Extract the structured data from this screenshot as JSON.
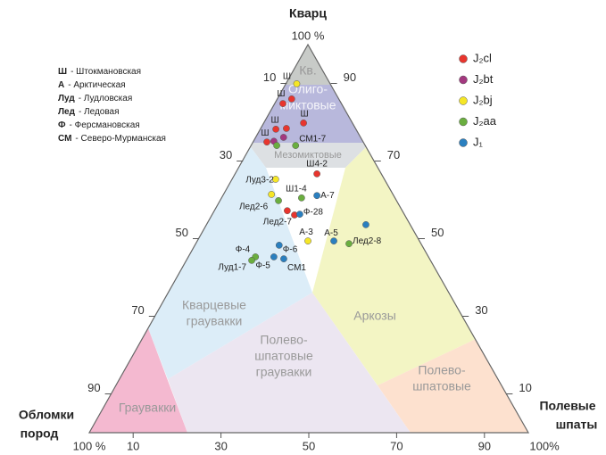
{
  "chart_data": {
    "type": "ternary",
    "title": "Кварц",
    "top_corner_label": "100 %",
    "left_corner_title": [
      "Обломки",
      "пород"
    ],
    "left_corner_label": "100 %",
    "right_corner_title": [
      "Полевые",
      "шпаты"
    ],
    "right_corner_label": "100%",
    "left_ticks": [
      10,
      30,
      50,
      70,
      90
    ],
    "right_ticks": [
      90,
      70,
      50,
      30,
      10
    ],
    "bottom_ticks": [
      10,
      30,
      50,
      70,
      90
    ],
    "regions": [
      {
        "label": [
          "Кв."
        ]
      },
      {
        "label": [
          "Олиго-",
          "миктовые"
        ]
      },
      {
        "label": [
          "Мезомиктовые"
        ]
      },
      {
        "label": [
          "Кварцевые",
          "граувакки"
        ]
      },
      {
        "label": [
          "Аркозы"
        ]
      },
      {
        "label": [
          "Граувакки"
        ]
      },
      {
        "label": [
          "Полево-",
          "шпатовые",
          "граувакки"
        ]
      },
      {
        "label": [
          "Полево-",
          "шпатовые"
        ]
      }
    ],
    "abbreviations": [
      {
        "abbr": "Ш",
        "text": "- Штокмановская"
      },
      {
        "abbr": "А",
        "text": "- Арктическая"
      },
      {
        "abbr": "Луд",
        "text": "- Лудловская"
      },
      {
        "abbr": "Лед",
        "text": "- Ледовая"
      },
      {
        "abbr": "Ф",
        "text": "- Ферсмановская"
      },
      {
        "abbr": "СМ",
        "text": "- Северо-Мурманская"
      }
    ],
    "series": [
      {
        "name": "J₂cl",
        "color": "#e8352e",
        "points": [
          {
            "q": 84.8,
            "f": 1.7,
            "label": "Ш"
          },
          {
            "q": 86.0,
            "f": 3.1,
            "label": null
          },
          {
            "q": 79.8,
            "f": 8.9,
            "label": "Ш"
          },
          {
            "q": 78.2,
            "f": 3.4,
            "label": "Ш"
          },
          {
            "q": 78.4,
            "f": 5.7,
            "label": null
          },
          {
            "q": 74.9,
            "f": 3.0,
            "label": "Ш"
          },
          {
            "q": 66.7,
            "f": 18.5,
            "label": "Ш4-2"
          },
          {
            "q": 57.2,
            "f": 16.5,
            "label": null
          },
          {
            "q": 56.1,
            "f": 18.7,
            "label": "Лед2-7"
          }
        ]
      },
      {
        "name": "J₂bt",
        "color": "#a3387f",
        "points": [
          {
            "q": 76.1,
            "f": 6.2,
            "label": null
          },
          {
            "q": 75.1,
            "f": 4.5,
            "label": null
          }
        ]
      },
      {
        "name": "J₂bj",
        "color": "#f5e626",
        "points": [
          {
            "q": 89.9,
            "f": 2.3,
            "label": "Ш"
          },
          {
            "q": 65.3,
            "f": 9.8,
            "label": "Луд3-2"
          },
          {
            "q": 61.4,
            "f": 10.8,
            "label": "Лед2-6"
          },
          {
            "q": 49.4,
            "f": 25.1,
            "label": "А-3"
          }
        ]
      },
      {
        "name": "J₂aa",
        "color": "#6aae3f",
        "points": [
          {
            "q": 74.0,
            "f": 5.7,
            "label": null
          },
          {
            "q": 74.0,
            "f": 10.0,
            "label": "СМ1-7"
          },
          {
            "q": 60.5,
            "f": 18.1,
            "label": "Ш1-4"
          },
          {
            "q": 59.8,
            "f": 13.2,
            "label": null
          },
          {
            "q": 48.7,
            "f": 34.8,
            "label": "Лед2-8"
          },
          {
            "q": 45.3,
            "f": 15.2,
            "label": "Ф-4"
          },
          {
            "q": 44.4,
            "f": 14.8,
            "label": "Луд1-7"
          }
        ]
      },
      {
        "name": "J₁",
        "color": "#2a7fbf",
        "points": [
          {
            "q": 61.1,
            "f": 21.3,
            "label": "А-7"
          },
          {
            "q": 56.3,
            "f": 19.8,
            "label": "Ф-28"
          },
          {
            "q": 49.4,
            "f": 31.0,
            "label": "А-5"
          },
          {
            "q": 53.6,
            "f": 36.2,
            "label": null
          },
          {
            "q": 48.3,
            "f": 19.1,
            "label": "Ф-6"
          },
          {
            "q": 45.3,
            "f": 19.4,
            "label": "Ф-5"
          },
          {
            "q": 44.8,
            "f": 21.9,
            "label": "СМ1"
          }
        ]
      }
    ]
  }
}
